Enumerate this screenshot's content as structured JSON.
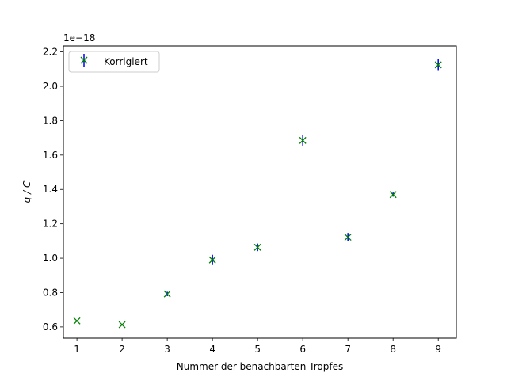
{
  "chart_data": {
    "type": "scatter",
    "title": "",
    "xlabel": "Nummer der benachbarten Tropfes",
    "ylabel": "q / C",
    "y_scale_label": "1e−18",
    "xlim": [
      0.7,
      9.4
    ],
    "ylim": [
      0.535,
      2.235
    ],
    "x_ticks": [
      1,
      2,
      3,
      4,
      5,
      6,
      7,
      8,
      9
    ],
    "x_tick_labels": [
      "1",
      "2",
      "3",
      "4",
      "5",
      "6",
      "7",
      "8",
      "9"
    ],
    "y_ticks": [
      0.6,
      0.8,
      1.0,
      1.2,
      1.4,
      1.6,
      1.8,
      2.0,
      2.2
    ],
    "y_tick_labels": [
      "0.6",
      "0.8",
      "1.0",
      "1.2",
      "1.4",
      "1.6",
      "1.8",
      "2.0",
      "2.2"
    ],
    "grid": false,
    "legend_position": "upper left",
    "series": [
      {
        "name": "Korrigiert",
        "marker": "x",
        "marker_color": "#008000",
        "errorbar_color": "#0000ff",
        "x": [
          1,
          2,
          3,
          4,
          5,
          6,
          7,
          8,
          9
        ],
        "y": [
          0.635,
          0.613,
          0.792,
          0.99,
          1.063,
          1.685,
          1.122,
          1.37,
          2.125
        ],
        "yerr": [
          0.0,
          0.0,
          0.013,
          0.03,
          0.022,
          0.03,
          0.025,
          0.012,
          0.035
        ]
      }
    ]
  }
}
